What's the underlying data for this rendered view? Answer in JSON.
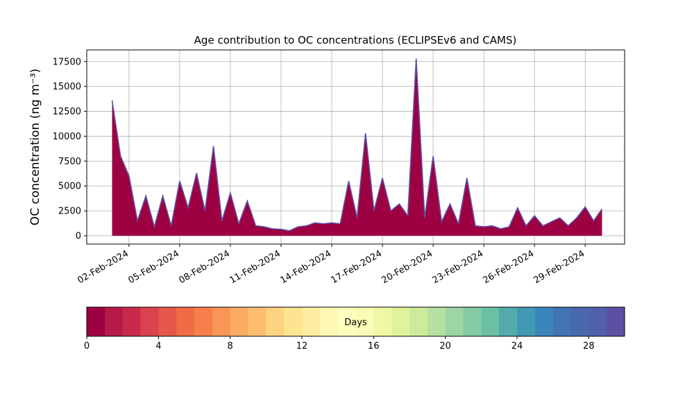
{
  "chart_data": {
    "type": "area",
    "title": "Age contribution to OC concentrations (ECLIPSEv6 and CAMS)",
    "y_label": "OC concentration (ng m⁻³)",
    "x": [
      "2024-02-01T00:00",
      "2024-02-01T12:00",
      "2024-02-02T00:00",
      "2024-02-02T12:00",
      "2024-02-03T00:00",
      "2024-02-03T12:00",
      "2024-02-04T00:00",
      "2024-02-04T12:00",
      "2024-02-05T00:00",
      "2024-02-05T12:00",
      "2024-02-06T00:00",
      "2024-02-06T12:00",
      "2024-02-07T00:00",
      "2024-02-07T12:00",
      "2024-02-08T00:00",
      "2024-02-08T12:00",
      "2024-02-09T00:00",
      "2024-02-09T12:00",
      "2024-02-10T00:00",
      "2024-02-10T12:00",
      "2024-02-11T00:00",
      "2024-02-11T12:00",
      "2024-02-12T00:00",
      "2024-02-12T12:00",
      "2024-02-13T00:00",
      "2024-02-13T12:00",
      "2024-02-14T00:00",
      "2024-02-14T12:00",
      "2024-02-15T00:00",
      "2024-02-15T12:00",
      "2024-02-16T00:00",
      "2024-02-16T12:00",
      "2024-02-17T00:00",
      "2024-02-17T12:00",
      "2024-02-18T00:00",
      "2024-02-18T12:00",
      "2024-02-19T00:00",
      "2024-02-19T12:00",
      "2024-02-20T00:00",
      "2024-02-20T12:00",
      "2024-02-21T00:00",
      "2024-02-21T12:00",
      "2024-02-22T00:00",
      "2024-02-22T12:00",
      "2024-02-23T00:00",
      "2024-02-23T12:00",
      "2024-02-24T00:00",
      "2024-02-24T12:00",
      "2024-02-25T00:00",
      "2024-02-25T12:00",
      "2024-02-26T00:00",
      "2024-02-26T12:00",
      "2024-02-27T00:00",
      "2024-02-27T12:00",
      "2024-02-28T00:00",
      "2024-02-28T12:00",
      "2024-02-29T00:00",
      "2024-02-29T12:00",
      "2024-03-01T00:00"
    ],
    "values": [
      13600,
      8000,
      6000,
      1500,
      4000,
      900,
      4000,
      1000,
      5500,
      2800,
      6300,
      2500,
      9000,
      1500,
      4300,
      1200,
      3500,
      1000,
      900,
      700,
      650,
      500,
      900,
      1000,
      1300,
      1200,
      1300,
      1200,
      5500,
      1800,
      10300,
      2500,
      5800,
      2500,
      3200,
      2000,
      17800,
      1800,
      8000,
      1400,
      3200,
      1200,
      5800,
      1000,
      900,
      1000,
      700,
      900,
      2800,
      1000,
      2000,
      1000,
      1400,
      1800,
      1000,
      1800,
      2900,
      1500,
      2700
    ],
    "color": "#9e0142",
    "edge_color": "#5e4fa2",
    "xlim": [
      "2024-01-30T12:00",
      "2024-03-02T08:00"
    ],
    "xticks": [
      {
        "value": "2024-02-02T00:00",
        "label": "02-Feb-2024"
      },
      {
        "value": "2024-02-05T00:00",
        "label": "05-Feb-2024"
      },
      {
        "value": "2024-02-08T00:00",
        "label": "08-Feb-2024"
      },
      {
        "value": "2024-02-11T00:00",
        "label": "11-Feb-2024"
      },
      {
        "value": "2024-02-14T00:00",
        "label": "14-Feb-2024"
      },
      {
        "value": "2024-02-17T00:00",
        "label": "17-Feb-2024"
      },
      {
        "value": "2024-02-20T00:00",
        "label": "20-Feb-2024"
      },
      {
        "value": "2024-02-23T00:00",
        "label": "23-Feb-2024"
      },
      {
        "value": "2024-02-26T00:00",
        "label": "26-Feb-2024"
      },
      {
        "value": "2024-02-29T00:00",
        "label": "29-Feb-2024"
      }
    ],
    "ylim": [
      -833,
      18667
    ],
    "yticks": [
      0,
      2500,
      5000,
      7500,
      10000,
      12500,
      15000,
      17500
    ],
    "grid": true,
    "colorbar": {
      "label": "Days",
      "lim": [
        0,
        30
      ],
      "ticks": [
        0,
        4,
        8,
        12,
        16,
        20,
        24,
        28
      ],
      "colors": [
        "#9e0142",
        "#b51a49",
        "#c92a4b",
        "#d8434e",
        "#e55749",
        "#f16c44",
        "#f67f4b",
        "#f99555",
        "#fcac62",
        "#fdbf6f",
        "#fdd380",
        "#fee391",
        "#feeda0",
        "#fff7b2",
        "#fffebe",
        "#f8fcb4",
        "#eff8a6",
        "#e1f39a",
        "#ceeb9c",
        "#b7e1a1",
        "#9dd5a4",
        "#84cba5",
        "#6bbfa5",
        "#55aaae",
        "#4299b3",
        "#3a86bb",
        "#4273b3",
        "#4a69ad",
        "#5060aa",
        "#5e4fa2"
      ]
    }
  }
}
